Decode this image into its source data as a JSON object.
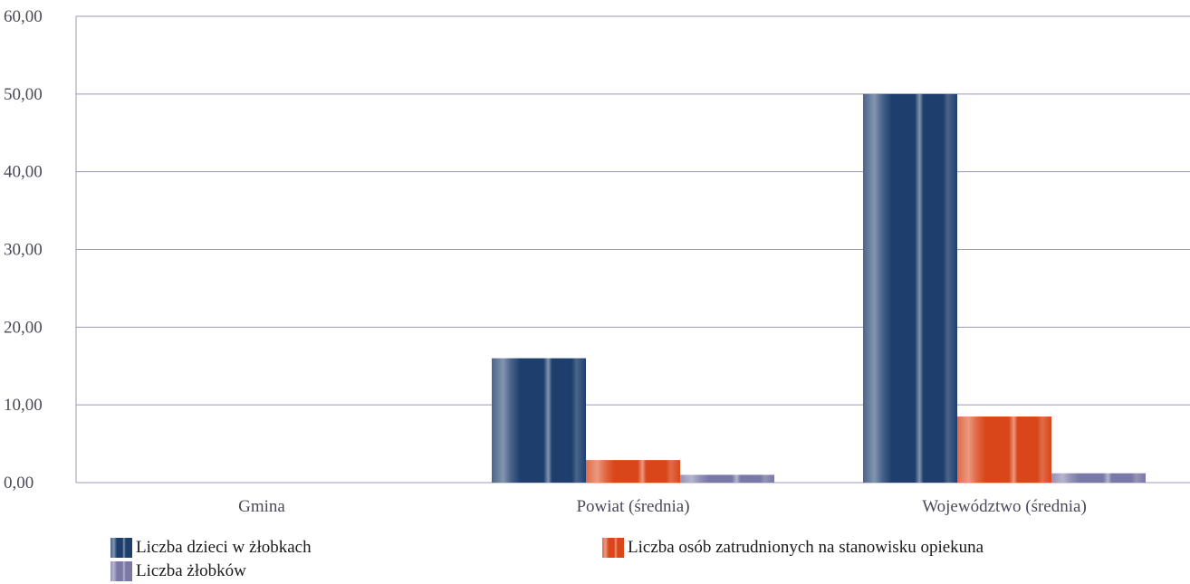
{
  "chart_data": {
    "type": "bar",
    "categories": [
      "Gmina",
      "Powiat (średnia)",
      "Województwo (średnia)"
    ],
    "series": [
      {
        "name": "Liczba  dzieci w żłobkach",
        "values": [
          0,
          16.0,
          50.0
        ],
        "color": "#1e3f6e"
      },
      {
        "name": "Liczba  osób zatrudnionych na stanowisku opiekuna",
        "values": [
          0,
          2.9,
          8.5
        ],
        "color": "#d9461a"
      },
      {
        "name": "Liczba  żłobków",
        "values": [
          0,
          1.0,
          1.2
        ],
        "color": "#7a78a6"
      }
    ],
    "y_ticks": [
      "0,00",
      "10,00",
      "20,00",
      "30,00",
      "40,00",
      "50,00",
      "60,00"
    ],
    "ylim": [
      0,
      60
    ],
    "grid": true,
    "legend_position": "bottom"
  }
}
